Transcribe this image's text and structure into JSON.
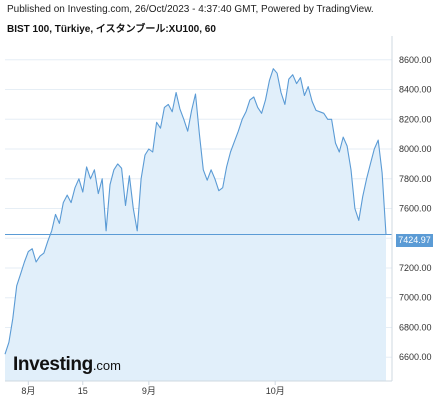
{
  "header": {
    "published": "Published on Investing.com, 26/Oct/2023 - 4:37:40 GMT, Powered by TradingView.",
    "symbol": "BIST 100, Türkiye, イスタンブール:XU100, 60"
  },
  "logo": {
    "brand": "Investing",
    "tld": ".com"
  },
  "colors": {
    "line": "#5b9bd5",
    "fill": "#e1effa",
    "grid": "#e6eef5",
    "axis": "#cfd8e0"
  },
  "chart_data": {
    "type": "area",
    "title": "",
    "xlabel": "",
    "ylabel": "",
    "ylim": [
      6440,
      8760
    ],
    "x_ticks": [
      {
        "label": "8月",
        "x": 0
      },
      {
        "label": "15",
        "x": 28
      },
      {
        "label": "9月",
        "x": 62
      },
      {
        "label": "10月",
        "x": 127
      }
    ],
    "y_ticks": [
      "8600.00",
      "8400.00",
      "8200.00",
      "8000.00",
      "7800.00",
      "7600.00",
      "7400.00",
      "7200.00",
      "7000.00",
      "6800.00",
      "6600.00"
    ],
    "last_value": "7424.97",
    "series": [
      {
        "values": [
          [
            -12,
            6620
          ],
          [
            -10,
            6700
          ],
          [
            -8,
            6860
          ],
          [
            -6,
            7080
          ],
          [
            -4,
            7160
          ],
          [
            -2,
            7240
          ],
          [
            0,
            7310
          ],
          [
            2,
            7330
          ],
          [
            4,
            7240
          ],
          [
            6,
            7280
          ],
          [
            8,
            7300
          ],
          [
            10,
            7380
          ],
          [
            12,
            7450
          ],
          [
            14,
            7560
          ],
          [
            16,
            7500
          ],
          [
            18,
            7640
          ],
          [
            20,
            7690
          ],
          [
            22,
            7640
          ],
          [
            24,
            7740
          ],
          [
            26,
            7800
          ],
          [
            28,
            7710
          ],
          [
            30,
            7880
          ],
          [
            32,
            7800
          ],
          [
            34,
            7860
          ],
          [
            36,
            7700
          ],
          [
            38,
            7800
          ],
          [
            40,
            7450
          ],
          [
            42,
            7760
          ],
          [
            44,
            7860
          ],
          [
            46,
            7900
          ],
          [
            48,
            7870
          ],
          [
            50,
            7620
          ],
          [
            52,
            7820
          ],
          [
            54,
            7600
          ],
          [
            56,
            7450
          ],
          [
            58,
            7800
          ],
          [
            60,
            7960
          ],
          [
            62,
            8000
          ],
          [
            64,
            7980
          ],
          [
            66,
            8180
          ],
          [
            68,
            8140
          ],
          [
            70,
            8280
          ],
          [
            72,
            8300
          ],
          [
            74,
            8250
          ],
          [
            76,
            8380
          ],
          [
            78,
            8270
          ],
          [
            80,
            8200
          ],
          [
            82,
            8120
          ],
          [
            84,
            8260
          ],
          [
            86,
            8370
          ],
          [
            88,
            8100
          ],
          [
            90,
            7860
          ],
          [
            92,
            7790
          ],
          [
            94,
            7860
          ],
          [
            96,
            7800
          ],
          [
            98,
            7720
          ],
          [
            100,
            7740
          ],
          [
            102,
            7880
          ],
          [
            104,
            7980
          ],
          [
            106,
            8050
          ],
          [
            108,
            8120
          ],
          [
            110,
            8200
          ],
          [
            112,
            8250
          ],
          [
            114,
            8330
          ],
          [
            116,
            8350
          ],
          [
            118,
            8280
          ],
          [
            120,
            8240
          ],
          [
            122,
            8330
          ],
          [
            124,
            8460
          ],
          [
            126,
            8540
          ],
          [
            128,
            8510
          ],
          [
            130,
            8380
          ],
          [
            132,
            8300
          ],
          [
            134,
            8470
          ],
          [
            136,
            8500
          ],
          [
            138,
            8440
          ],
          [
            140,
            8480
          ],
          [
            142,
            8360
          ],
          [
            144,
            8420
          ],
          [
            146,
            8320
          ],
          [
            148,
            8260
          ],
          [
            150,
            8250
          ],
          [
            152,
            8240
          ],
          [
            154,
            8200
          ],
          [
            156,
            8200
          ],
          [
            158,
            8040
          ],
          [
            160,
            7980
          ],
          [
            162,
            8080
          ],
          [
            164,
            8020
          ],
          [
            166,
            7860
          ],
          [
            168,
            7600
          ],
          [
            170,
            7520
          ],
          [
            172,
            7680
          ],
          [
            174,
            7800
          ],
          [
            176,
            7900
          ],
          [
            178,
            8000
          ],
          [
            180,
            8060
          ],
          [
            182,
            7840
          ],
          [
            184,
            7425
          ]
        ]
      }
    ]
  }
}
